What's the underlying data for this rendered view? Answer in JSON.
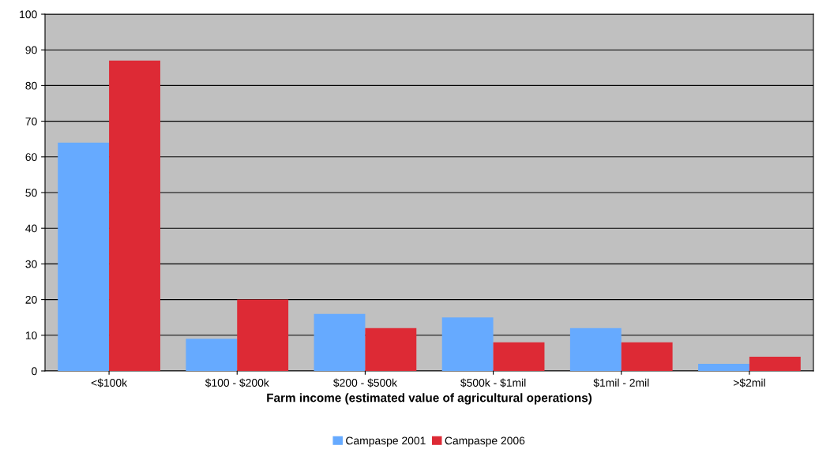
{
  "chart_data": {
    "type": "bar",
    "xlabel": "Farm income (estimated value of agricultural operations)",
    "categories": [
      "<$100k",
      "$100 - $200k",
      "$200 - $500k",
      "$500k - $1mil",
      "$1mil - 2mil",
      ">$2mil"
    ],
    "series": [
      {
        "name": "Campaspe 2001",
        "color": "#66aaff",
        "values": [
          64,
          9,
          16,
          15,
          12,
          2
        ]
      },
      {
        "name": "Campaspe 2006",
        "color": "#dd2a35",
        "values": [
          87,
          20,
          12,
          8,
          8,
          4
        ]
      }
    ],
    "ylim": [
      0,
      100
    ],
    "yticks": [
      0,
      10,
      20,
      30,
      40,
      50,
      60,
      70,
      80,
      90,
      100
    ],
    "grid": "y",
    "legend": "bottom"
  }
}
